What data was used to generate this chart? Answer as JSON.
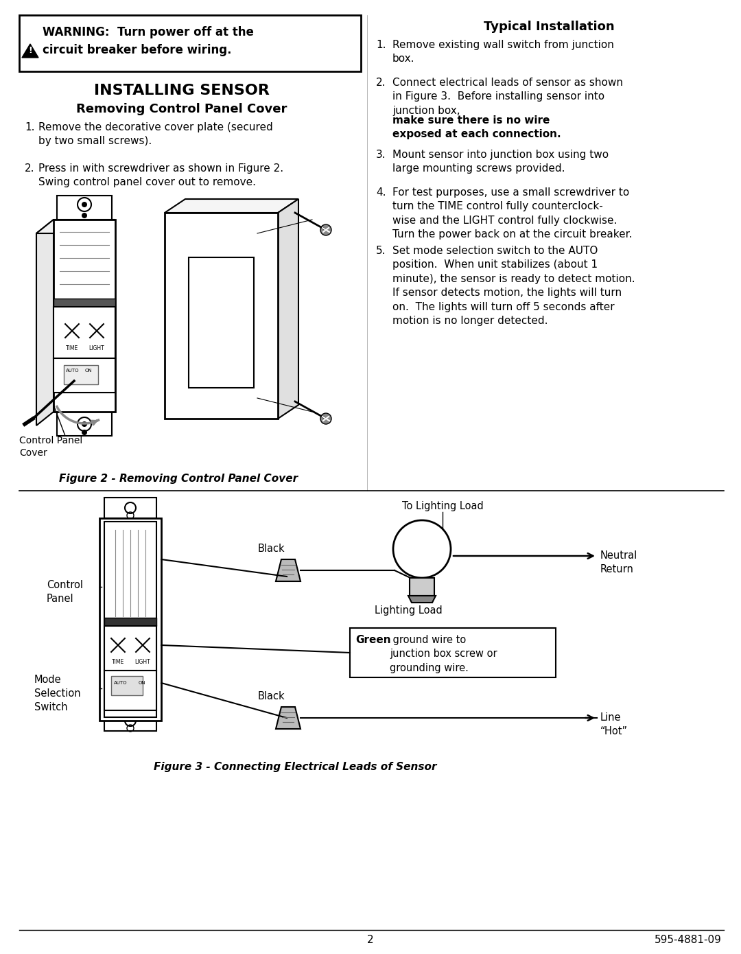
{
  "page_bg": "#ffffff",
  "warning_line1": "WARNING:  Turn power off at the",
  "warning_line2": "circuit breaker before wiring.",
  "installing_sensor_title": "INSTALLING SENSOR",
  "removing_cover_subtitle": "Removing Control Panel Cover",
  "left_step1": "Remove the decorative cover plate (secured\nby two small screws).",
  "left_step2": "Press in with screwdriver as shown in Figure 2.\nSwing control panel cover out to remove.",
  "figure2_caption": "Figure 2 - Removing Control Panel Cover",
  "typical_install_title": "Typical Installation",
  "right_step1": "Remove existing wall switch from junction\nbox.",
  "right_step2a": "Connect electrical leads of sensor as shown\nin Figure 3.  Before installing sensor into\njunction box, ",
  "right_step2b": "make sure there is no wire\nexposed at each connection.",
  "right_step3": "Mount sensor into junction box using two\nlarge mounting screws provided.",
  "right_step4": "For test purposes, use a small screwdriver to\nturn the TIME control fully counterclock-\nwise and the LIGHT control fully clockwise.\nTurn the power back on at the circuit breaker.",
  "right_step5": "Set mode selection switch to the AUTO\nposition.  When unit stabilizes (about 1\nminute), the sensor is ready to detect motion.\nIf sensor detects motion, the lights will turn\non.  The lights will turn off 5 seconds after\nmotion is no longer detected.",
  "figure3_caption": "Figure 3 - Connecting Electrical Leads of Sensor",
  "label_to_lighting_load": "To Lighting Load",
  "label_black_top": "Black",
  "label_neutral_return": "Neutral\nReturn",
  "label_lighting_load": "Lighting Load",
  "label_control_panel": "Control\nPanel",
  "label_mode_switch": "Mode\nSelection\nSwitch",
  "label_green": "Green",
  "label_green_rest": " ground wire to\njunction box screw or\ngrounding wire.",
  "label_black_bottom": "Black",
  "label_line_hot": "Line\n“Hot”",
  "page_number": "2",
  "part_number": "595-4881-09"
}
